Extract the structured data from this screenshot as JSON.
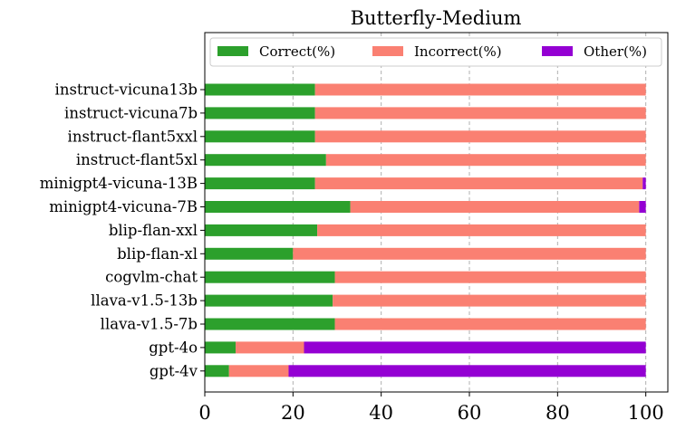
{
  "chart_data": {
    "type": "bar",
    "orientation": "horizontal",
    "stacked": true,
    "title": "Butterfly-Medium",
    "xlabel": "",
    "ylabel": "",
    "xlim": [
      0,
      105
    ],
    "xticks": [
      "0",
      "20",
      "40",
      "60",
      "80",
      "100"
    ],
    "grid": "x-dashed",
    "legend_position": "top",
    "categories": [
      "instruct-vicuna13b",
      "instruct-vicuna7b",
      "instruct-flant5xxl",
      "instruct-flant5xl",
      "minigpt4-vicuna-13B",
      "minigpt4-vicuna-7B",
      "blip-flan-xxl",
      "blip-flan-xl",
      "cogvlm-chat",
      "llava-v1.5-13b",
      "llava-v1.5-7b",
      "gpt-4o",
      "gpt-4v"
    ],
    "series": [
      {
        "name": "Correct(%)",
        "color": "#2ca02c",
        "values": [
          25,
          25,
          25,
          27.5,
          25,
          33,
          25.5,
          20,
          29.5,
          29,
          29.5,
          7,
          5.5
        ]
      },
      {
        "name": "Incorrect(%)",
        "color": "#fa8072",
        "values": [
          75,
          75,
          75,
          72.5,
          74.3,
          65.5,
          74.5,
          80,
          70.5,
          71,
          70.5,
          15.5,
          13.5
        ]
      },
      {
        "name": "Other(%)",
        "color": "#9400d3",
        "values": [
          0,
          0,
          0,
          0,
          0.7,
          1.5,
          0,
          0,
          0,
          0,
          0,
          77.5,
          81
        ]
      }
    ]
  }
}
